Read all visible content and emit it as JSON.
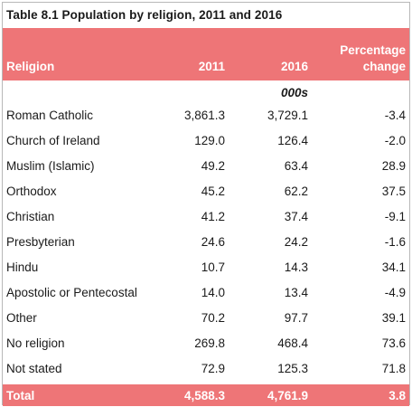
{
  "table": {
    "title": "Table 8.1  Population by religion, 2011 and 2016",
    "headers": {
      "religion": "Religion",
      "y2011": "2011",
      "y2016": "2016",
      "pct_change": "Percentage change"
    },
    "units": "000s",
    "rows": [
      {
        "religion": "Roman Catholic",
        "y2011": "3,861.3",
        "y2016": "3,729.1",
        "pct_change": "-3.4"
      },
      {
        "religion": "Church of Ireland",
        "y2011": "129.0",
        "y2016": "126.4",
        "pct_change": "-2.0"
      },
      {
        "religion": "Muslim (Islamic)",
        "y2011": "49.2",
        "y2016": "63.4",
        "pct_change": "28.9"
      },
      {
        "religion": "Orthodox",
        "y2011": "45.2",
        "y2016": "62.2",
        "pct_change": "37.5"
      },
      {
        "religion": "Christian",
        "y2011": "41.2",
        "y2016": "37.4",
        "pct_change": "-9.1"
      },
      {
        "religion": "Presbyterian",
        "y2011": "24.6",
        "y2016": "24.2",
        "pct_change": "-1.6"
      },
      {
        "religion": "Hindu",
        "y2011": "10.7",
        "y2016": "14.3",
        "pct_change": "34.1"
      },
      {
        "religion": "Apostolic or Pentecostal",
        "y2011": "14.0",
        "y2016": "13.4",
        "pct_change": "-4.9"
      },
      {
        "religion": "Other",
        "y2011": "70.2",
        "y2016": "97.7",
        "pct_change": "39.1"
      },
      {
        "religion": "No religion",
        "y2011": "269.8",
        "y2016": "468.4",
        "pct_change": "73.6"
      },
      {
        "religion": "Not stated",
        "y2011": "72.9",
        "y2016": "125.3",
        "pct_change": "71.8"
      }
    ],
    "total": {
      "religion": "Total",
      "y2011": "4,588.3",
      "y2016": "4,761.9",
      "pct_change": "3.8"
    }
  },
  "colors": {
    "header_bg": "#ee7577",
    "header_text": "#ffffff"
  }
}
